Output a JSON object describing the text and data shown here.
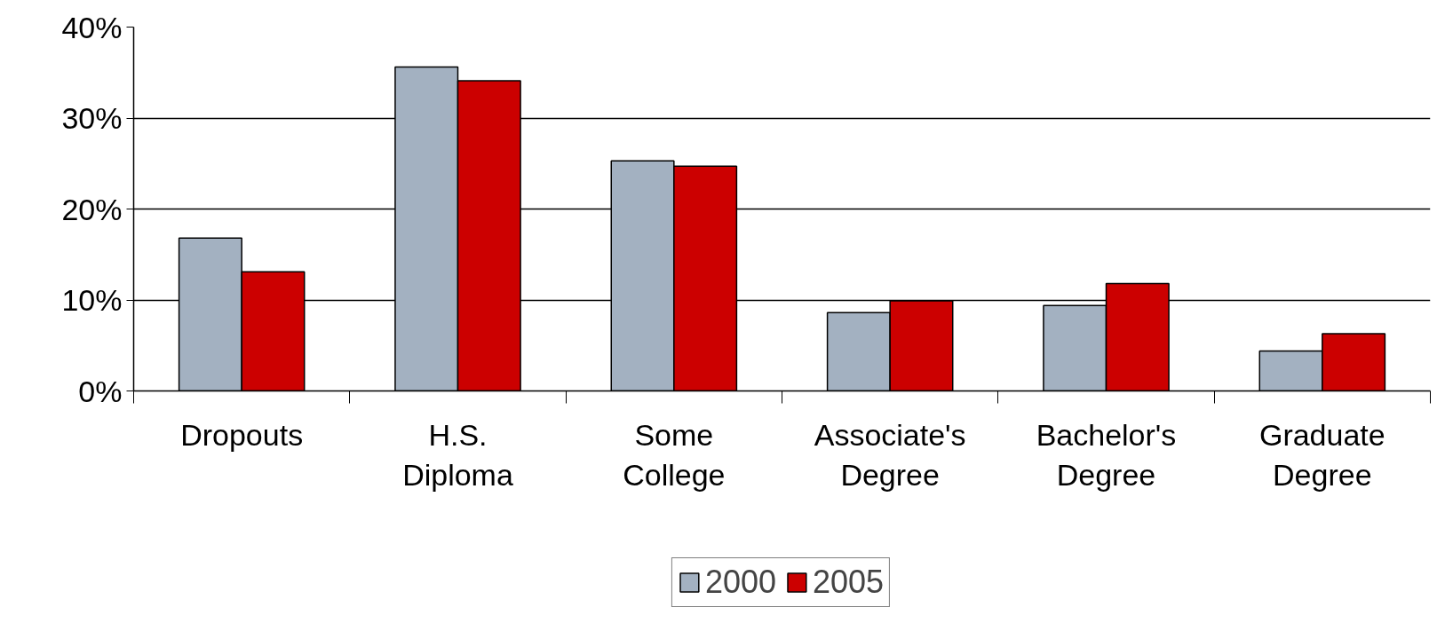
{
  "chart_data": {
    "type": "bar",
    "categories": [
      "Dropouts",
      "H.S. Diploma",
      "Some College",
      "Associate's Degree",
      "Bachelor's Degree",
      "Graduate Degree"
    ],
    "series": [
      {
        "name": "2000",
        "color": "#a3b1c1",
        "values": [
          16.8,
          35.6,
          25.3,
          8.6,
          9.4,
          4.4
        ]
      },
      {
        "name": "2005",
        "color": "#cc0000",
        "values": [
          13.1,
          34.1,
          24.7,
          9.9,
          11.8,
          6.3
        ]
      }
    ],
    "ylim": [
      0,
      40
    ],
    "yticks": [
      {
        "value": 0,
        "label": "0%"
      },
      {
        "value": 10,
        "label": "10%"
      },
      {
        "value": 20,
        "label": "20%"
      },
      {
        "value": 30,
        "label": "30%"
      },
      {
        "value": 40,
        "label": "40%"
      }
    ],
    "grid": "y",
    "legend": "bottom"
  }
}
